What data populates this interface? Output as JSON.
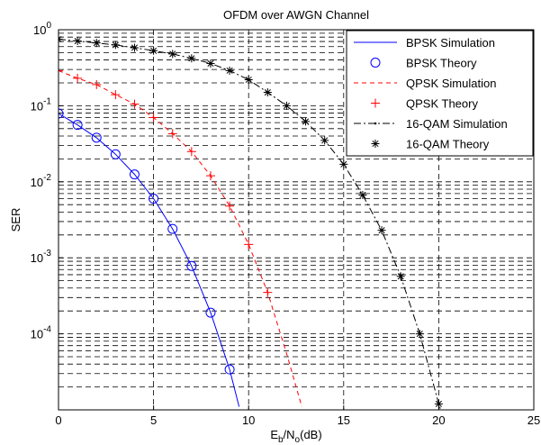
{
  "chart_data": {
    "type": "line",
    "title": "OFDM over AWGN Channel",
    "xlabel": {
      "main": "E",
      "sub1": "b",
      "mid": "/N",
      "sub2": "o",
      "tail": "(dB)"
    },
    "ylabel": "SER",
    "xlim": [
      0,
      25
    ],
    "ylim": [
      1e-05,
      1
    ],
    "yscale": "log",
    "grid": true,
    "legend_position": "top-right",
    "x_ticks": [
      "0",
      "5",
      "10",
      "15",
      "20",
      "25"
    ],
    "y_ticks": [
      {
        "value": 1,
        "base": "10",
        "exp": "0"
      },
      {
        "value": 0.1,
        "base": "10",
        "exp": "-1"
      },
      {
        "value": 0.01,
        "base": "10",
        "exp": "-2"
      },
      {
        "value": 0.001,
        "base": "10",
        "exp": "-3"
      },
      {
        "value": 0.0001,
        "base": "10",
        "exp": "-4"
      }
    ],
    "series": [
      {
        "name": "BPSK Simulation",
        "color": "#0000ff",
        "style": "solid",
        "marker": "none",
        "x": [
          0,
          1,
          2,
          3,
          4,
          5,
          6,
          7,
          8,
          9,
          9.5
        ],
        "y": [
          0.079,
          0.056,
          0.038,
          0.023,
          0.0125,
          0.006,
          0.0024,
          0.00078,
          0.00019,
          3.4e-05,
          1.1e-05
        ]
      },
      {
        "name": "BPSK Theory",
        "color": "#0000ff",
        "style": "none",
        "marker": "circle",
        "x": [
          0,
          1,
          2,
          3,
          4,
          5,
          6,
          7,
          8,
          9
        ],
        "y": [
          0.079,
          0.056,
          0.038,
          0.023,
          0.0125,
          0.006,
          0.0024,
          0.00078,
          0.00019,
          3.4e-05
        ]
      },
      {
        "name": "QPSK Simulation",
        "color": "#ff0000",
        "style": "dashed",
        "marker": "none",
        "x": [
          0,
          1,
          2,
          3,
          4,
          5,
          6,
          7,
          8,
          9,
          10,
          11,
          12,
          12.8
        ],
        "y": [
          0.29,
          0.23,
          0.19,
          0.14,
          0.105,
          0.07,
          0.043,
          0.025,
          0.012,
          0.0048,
          0.0015,
          0.00035,
          5.5e-05,
          1.1e-05
        ]
      },
      {
        "name": "QPSK Theory",
        "color": "#ff0000",
        "style": "none",
        "marker": "plus",
        "x": [
          0,
          1,
          2,
          3,
          4,
          5,
          6,
          7,
          8,
          9,
          10,
          11
        ],
        "y": [
          0.29,
          0.23,
          0.19,
          0.14,
          0.105,
          0.07,
          0.043,
          0.025,
          0.012,
          0.0048,
          0.0015,
          0.00035
        ]
      },
      {
        "name": "16-QAM Simulation",
        "color": "#000000",
        "style": "dashdot",
        "marker": "dot",
        "x": [
          0,
          1,
          2,
          3,
          4,
          5,
          6,
          7,
          8,
          9,
          10,
          11,
          12,
          13,
          14,
          15,
          16,
          17,
          18,
          19,
          20,
          20.5
        ],
        "y": [
          0.75,
          0.71,
          0.67,
          0.63,
          0.58,
          0.53,
          0.48,
          0.42,
          0.36,
          0.29,
          0.22,
          0.15,
          0.1,
          0.062,
          0.035,
          0.017,
          0.0067,
          0.0023,
          0.00057,
          0.0001,
          1.2e-05,
          5e-06
        ]
      },
      {
        "name": "16-QAM Theory",
        "color": "#000000",
        "style": "none",
        "marker": "star",
        "x": [
          0,
          1,
          2,
          3,
          4,
          5,
          6,
          7,
          8,
          9,
          10,
          11,
          12,
          13,
          14,
          15,
          16,
          17,
          18,
          19,
          20
        ],
        "y": [
          0.75,
          0.71,
          0.67,
          0.63,
          0.58,
          0.53,
          0.48,
          0.42,
          0.36,
          0.29,
          0.22,
          0.15,
          0.1,
          0.062,
          0.035,
          0.017,
          0.0067,
          0.0023,
          0.00057,
          0.0001,
          1.2e-05
        ]
      }
    ]
  }
}
